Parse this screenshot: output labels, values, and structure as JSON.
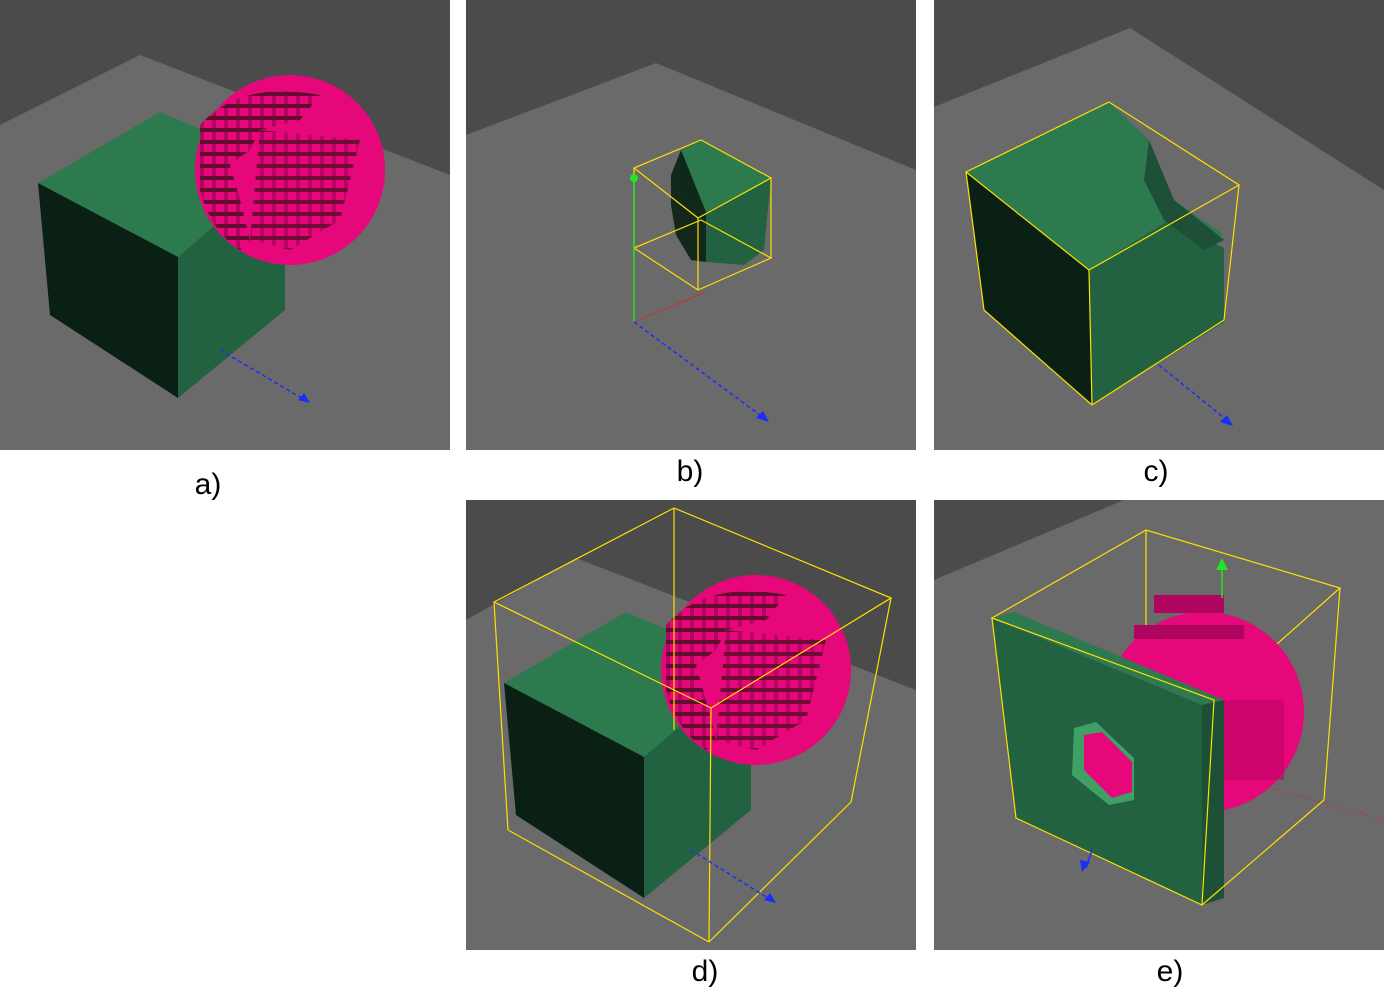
{
  "figure": {
    "panels": [
      {
        "id": "a",
        "caption": "a)"
      },
      {
        "id": "b",
        "caption": "b)"
      },
      {
        "id": "c",
        "caption": "c)"
      },
      {
        "id": "d",
        "caption": "d)"
      },
      {
        "id": "e",
        "caption": "e)"
      }
    ]
  },
  "colors": {
    "background_dark": "#4b4b4b",
    "floor": "#6a6a6a",
    "cube_top": "#2d7a4e",
    "cube_side": "#226240",
    "cube_front": "#0b2015",
    "sphere_pink": "#e6077a",
    "sphere_shadow": "#5a0d2a",
    "bbox_yellow": "#ffe000",
    "axis_blue": "#1a2dff",
    "axis_green": "#22e622",
    "axis_red": "#c83232"
  }
}
